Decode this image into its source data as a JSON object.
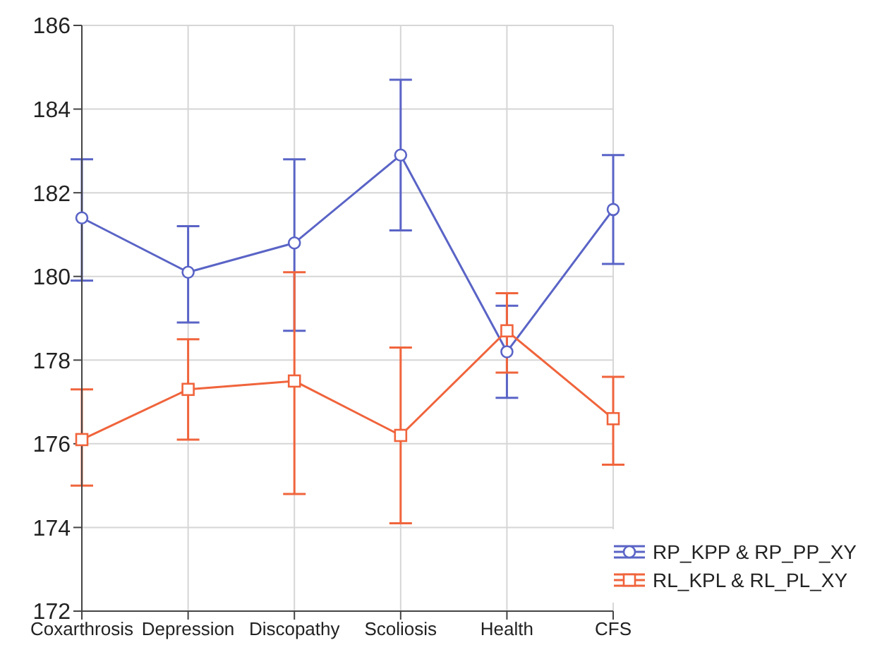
{
  "chart_data": {
    "type": "line",
    "categories": [
      "Coxarthrosis",
      "Depression",
      "Discopathy",
      "Scoliosis",
      "Health",
      "CFS"
    ],
    "series": [
      {
        "name": "RP_KPP & RP_PP_XY",
        "color": "#5a64c6",
        "marker": "circle",
        "values": [
          181.4,
          180.1,
          180.8,
          182.9,
          178.2,
          181.6
        ],
        "errors": [
          [
            179.9,
            182.8
          ],
          [
            178.9,
            181.2
          ],
          [
            178.7,
            182.8
          ],
          [
            181.1,
            184.7
          ],
          [
            177.1,
            179.3
          ],
          [
            180.3,
            182.9
          ]
        ]
      },
      {
        "name": "RL_KPL & RL_PL_XY",
        "color": "#f0643c",
        "marker": "square",
        "values": [
          176.1,
          177.3,
          177.5,
          176.2,
          178.7,
          176.6
        ],
        "errors": [
          [
            175.0,
            177.3
          ],
          [
            176.1,
            178.5
          ],
          [
            174.8,
            180.1
          ],
          [
            174.1,
            178.3
          ],
          [
            177.7,
            179.6
          ],
          [
            175.5,
            177.6
          ]
        ]
      }
    ],
    "ylim": [
      172,
      186
    ],
    "yticks": [
      172,
      174,
      176,
      178,
      180,
      182,
      184,
      186
    ],
    "grid": true,
    "legend": "bottom right"
  }
}
